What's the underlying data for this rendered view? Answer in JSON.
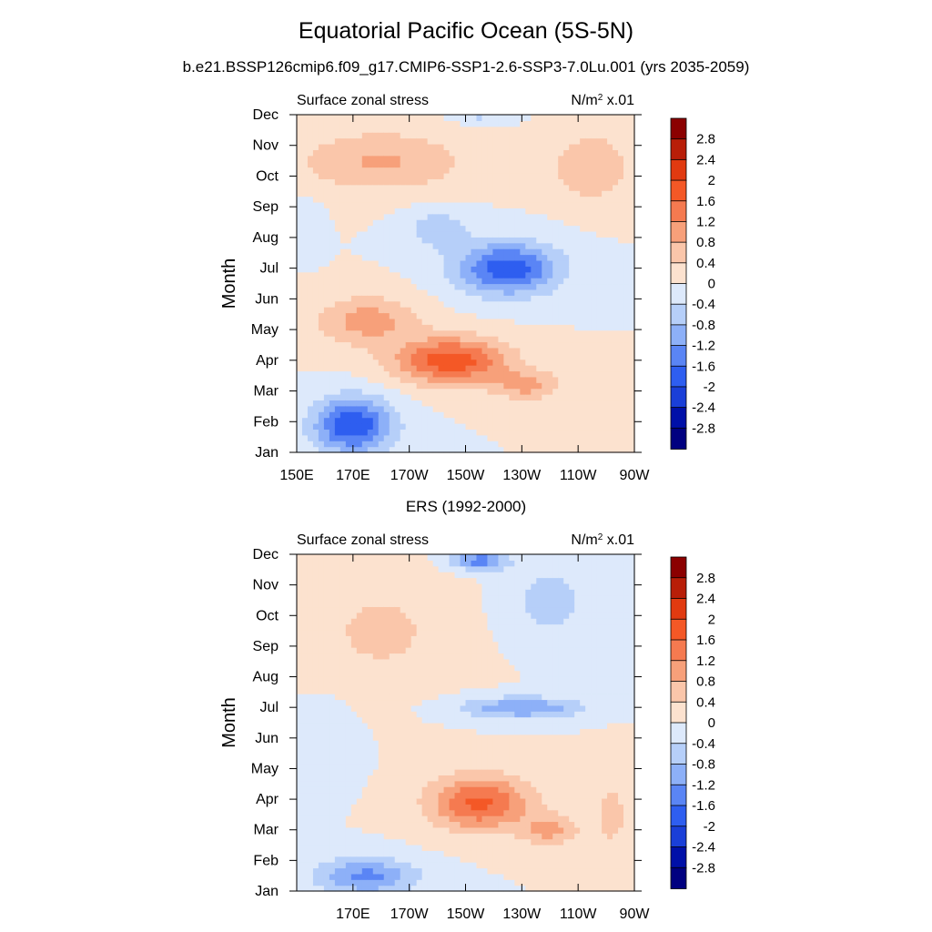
{
  "title": "Equatorial Pacific Ocean (5S-5N)",
  "subtitle": "b.e21.BSSP126cmip6.f09_g17.CMIP6-SSP1-2.6-SSP3-7.0Lu.001 (yrs 2035-2059)",
  "colors": {
    "scale": [
      "#000080",
      "#0010a8",
      "#1a3fd8",
      "#2e5ef0",
      "#5a85f5",
      "#8db0f8",
      "#b6cff9",
      "#dde9fb",
      "#fce2cf",
      "#fac6aa",
      "#f7a07a",
      "#f57a50",
      "#f45826",
      "#e13a10",
      "#b81e08",
      "#8b0000"
    ]
  },
  "chart_data": [
    {
      "type": "heatmap",
      "panel_title": "",
      "left_label": "Surface zonal stress",
      "right_label_base": "N/m",
      "right_label_sup": "2",
      "right_label_suffix": " x.01",
      "ylabel": "Month",
      "xlabel": "",
      "x_ticks": [
        "150E",
        "170E",
        "170W",
        "150W",
        "130W",
        "110W",
        "90W"
      ],
      "y_ticks": [
        "Jan",
        "Feb",
        "Mar",
        "Apr",
        "May",
        "Jun",
        "Jul",
        "Aug",
        "Sep",
        "Oct",
        "Nov",
        "Dec"
      ],
      "colorbar_labels": [
        "2.8",
        "2.4",
        "2",
        "1.6",
        "1.2",
        "0.8",
        "0.4",
        "0",
        "-0.4",
        "-0.8",
        "-1.2",
        "-1.6",
        "-2",
        "-2.4",
        "-2.8"
      ],
      "levels": [
        -2.8,
        -2.4,
        -2.0,
        -1.6,
        -1.2,
        -0.8,
        -0.4,
        0,
        0.4,
        0.8,
        1.2,
        1.6,
        2.0,
        2.4,
        2.8
      ],
      "xlim": [
        150,
        270
      ],
      "ylim": [
        1,
        12
      ],
      "features": [
        {
          "lon": 170,
          "month": 1.9,
          "amp": -2.0,
          "slon": 14,
          "smon": 0.9
        },
        {
          "lon": 205,
          "month": 4.0,
          "amp": 1.9,
          "slon": 20,
          "smon": 0.75
        },
        {
          "lon": 232,
          "month": 3.2,
          "amp": 0.9,
          "slon": 12,
          "smon": 0.5
        },
        {
          "lon": 175,
          "month": 5.3,
          "amp": 1.0,
          "slon": 18,
          "smon": 0.8
        },
        {
          "lon": 225,
          "month": 7.0,
          "amp": -1.9,
          "slon": 18,
          "smon": 0.85
        },
        {
          "lon": 200,
          "month": 8.3,
          "amp": -0.6,
          "slon": 12,
          "smon": 0.7
        },
        {
          "lon": 180,
          "month": 10.5,
          "amp": 0.85,
          "slon": 30,
          "smon": 1.0
        },
        {
          "lon": 255,
          "month": 10.3,
          "amp": 0.8,
          "slon": 14,
          "smon": 1.1
        },
        {
          "lon": 152,
          "month": 8.5,
          "amp": -0.4,
          "slon": 6,
          "smon": 0.8
        },
        {
          "lon": 215,
          "month": 12.0,
          "amp": -0.5,
          "slon": 10,
          "smon": 0.25
        }
      ]
    },
    {
      "type": "heatmap",
      "panel_title": "ERS (1992-2000)",
      "left_label": "Surface zonal stress",
      "right_label_base": "N/m",
      "right_label_sup": "2",
      "right_label_suffix": " x.01",
      "ylabel": "Month",
      "xlabel": "",
      "x_ticks": [
        "",
        "170E",
        "170W",
        "150W",
        "130W",
        "110W",
        "90W"
      ],
      "y_ticks": [
        "Jan",
        "Feb",
        "Mar",
        "Apr",
        "May",
        "Jun",
        "Jul",
        "Aug",
        "Sep",
        "Oct",
        "Nov",
        "Dec"
      ],
      "colorbar_labels": [
        "2.8",
        "2.4",
        "2",
        "1.6",
        "1.2",
        "0.8",
        "0.4",
        "0",
        "-0.4",
        "-0.8",
        "-1.2",
        "-1.6",
        "-2",
        "-2.4",
        "-2.8"
      ],
      "levels": [
        -2.8,
        -2.4,
        -2.0,
        -1.6,
        -1.2,
        -0.8,
        -0.4,
        0,
        0.4,
        0.8,
        1.2,
        1.6,
        2.0,
        2.4,
        2.8
      ],
      "xlim": [
        150,
        270
      ],
      "ylim": [
        1,
        12
      ],
      "features": [
        {
          "lon": 175,
          "month": 1.5,
          "amp": -1.3,
          "slon": 18,
          "smon": 0.6
        },
        {
          "lon": 215,
          "month": 3.9,
          "amp": 1.7,
          "slon": 18,
          "smon": 0.9
        },
        {
          "lon": 240,
          "month": 3.0,
          "amp": 0.9,
          "slon": 10,
          "smon": 0.5
        },
        {
          "lon": 230,
          "month": 7.0,
          "amp": -1.2,
          "slon": 22,
          "smon": 0.35
        },
        {
          "lon": 180,
          "month": 9.5,
          "amp": 0.5,
          "slon": 25,
          "smon": 1.8
        },
        {
          "lon": 215,
          "month": 11.8,
          "amp": -1.4,
          "slon": 10,
          "smon": 0.3
        },
        {
          "lon": 240,
          "month": 10.5,
          "amp": -0.6,
          "slon": 15,
          "smon": 1.2
        },
        {
          "lon": 160,
          "month": 6.0,
          "amp": -0.3,
          "slon": 10,
          "smon": 1.2
        },
        {
          "lon": 262,
          "month": 3.5,
          "amp": 0.5,
          "slon": 8,
          "smon": 1.5
        }
      ]
    }
  ]
}
